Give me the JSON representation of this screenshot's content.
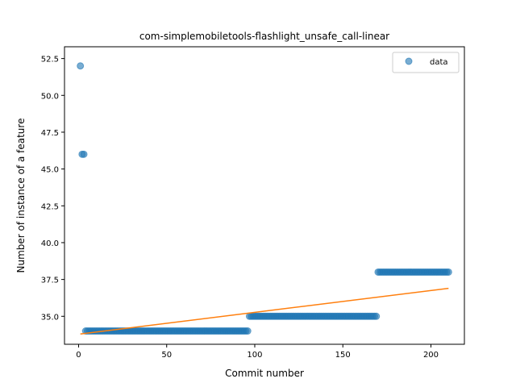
{
  "chart_data": {
    "type": "scatter",
    "title": "com-simplemobiletools-flashlight_unsafe_call-linear",
    "xlabel": "Commit number",
    "ylabel": "Number of instance of a feature",
    "xlim": [
      -8,
      219
    ],
    "ylim": [
      33.1,
      53.3
    ],
    "xticks": [
      0,
      50,
      100,
      150,
      200
    ],
    "yticks": [
      35.0,
      37.5,
      40.0,
      42.5,
      45.0,
      47.5,
      50.0,
      52.5
    ],
    "xtick_labels": [
      "0",
      "50",
      "100",
      "150",
      "200"
    ],
    "ytick_labels": [
      "35.0",
      "37.5",
      "40.0",
      "42.5",
      "45.0",
      "47.5",
      "50.0",
      "52.5"
    ],
    "legend": {
      "location": "upper right",
      "entries": [
        "data"
      ]
    },
    "grid": false,
    "series": [
      {
        "name": "data",
        "kind": "scatter",
        "color": "#1f77b4",
        "alpha": 0.6,
        "segments": [
          {
            "x_start": 1,
            "x_end": 1,
            "y": 52
          },
          {
            "x_start": 2,
            "x_end": 3,
            "y": 46
          },
          {
            "x_start": 4,
            "x_end": 96,
            "y": 34
          },
          {
            "x_start": 97,
            "x_end": 169,
            "y": 35
          },
          {
            "x_start": 170,
            "x_end": 210,
            "y": 38
          }
        ]
      },
      {
        "kind": "line",
        "color": "#ff7f0e",
        "x": [
          1,
          210
        ],
        "y": [
          33.8,
          36.9
        ]
      }
    ]
  }
}
